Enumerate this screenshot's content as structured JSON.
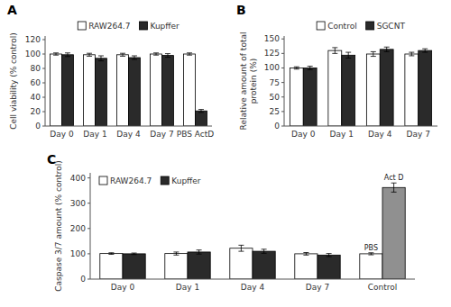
{
  "chart_data": [
    {
      "type": "bar",
      "title": "A",
      "ylabel": "Cell viability (% control)",
      "categories": [
        "Day 0",
        "Day 1",
        "Day 4",
        "Day 7",
        "PBS ActD"
      ],
      "series": [
        {
          "name": "RAW264.7",
          "color": "#ffffff",
          "values": [
            100,
            99,
            99,
            100,
            100
          ],
          "errors": [
            1.5,
            2,
            2,
            1.5,
            1.5
          ]
        },
        {
          "name": "Kupffer",
          "color": "#2a2a2a",
          "values": [
            99,
            94,
            95,
            98,
            21
          ],
          "errors": [
            2.5,
            3.5,
            2.5,
            2.5,
            2
          ]
        }
      ],
      "ylim": [
        0,
        125
      ],
      "yticks": [
        0,
        20,
        40,
        60,
        80,
        100,
        120
      ],
      "legend": "upper center"
    },
    {
      "type": "bar",
      "title": "B",
      "ylabel": "Relative amount of total\nprotein (%)",
      "categories": [
        "Day 0",
        "Day 1",
        "Day 4",
        "Day 7"
      ],
      "series": [
        {
          "name": "Control",
          "color": "#ffffff",
          "values": [
            100,
            130,
            124,
            124
          ],
          "errors": [
            2,
            5,
            4,
            3
          ]
        },
        {
          "name": "SGCNT",
          "color": "#2a2a2a",
          "values": [
            100,
            122,
            132,
            130
          ],
          "errors": [
            3,
            5,
            4,
            3
          ]
        }
      ],
      "ylim": [
        0,
        155
      ],
      "yticks": [
        0,
        25,
        50,
        75,
        100,
        125,
        150
      ],
      "legend": "upper center"
    },
    {
      "type": "bar",
      "title": "C",
      "ylabel": "Caspase 3/7 amount (% control)",
      "categories": [
        "Day 0",
        "Day 1",
        "Day 4",
        "Day 7",
        "Control"
      ],
      "series": [
        {
          "name": "RAW264.7",
          "color": "#ffffff",
          "values": [
            101,
            101,
            122,
            100,
            100
          ],
          "errors": [
            3,
            6,
            12,
            5,
            4
          ]
        },
        {
          "name": "Kupffer",
          "color": "#2a2a2a",
          "colors": [
            "#2a2a2a",
            "#2a2a2a",
            "#2a2a2a",
            "#2a2a2a",
            "#909090"
          ],
          "values": [
            100,
            107,
            110,
            95,
            362
          ],
          "errors": [
            3,
            8,
            8,
            6,
            18
          ]
        }
      ],
      "annotations": [
        {
          "text": "PBS",
          "category": "Control",
          "series": "RAW264.7"
        },
        {
          "text": "Act D",
          "category": "Control",
          "series": "Kupffer"
        }
      ],
      "ylim": [
        0,
        420
      ],
      "yticks": [
        0,
        100,
        200,
        300,
        400
      ],
      "legend": "upper left"
    }
  ]
}
